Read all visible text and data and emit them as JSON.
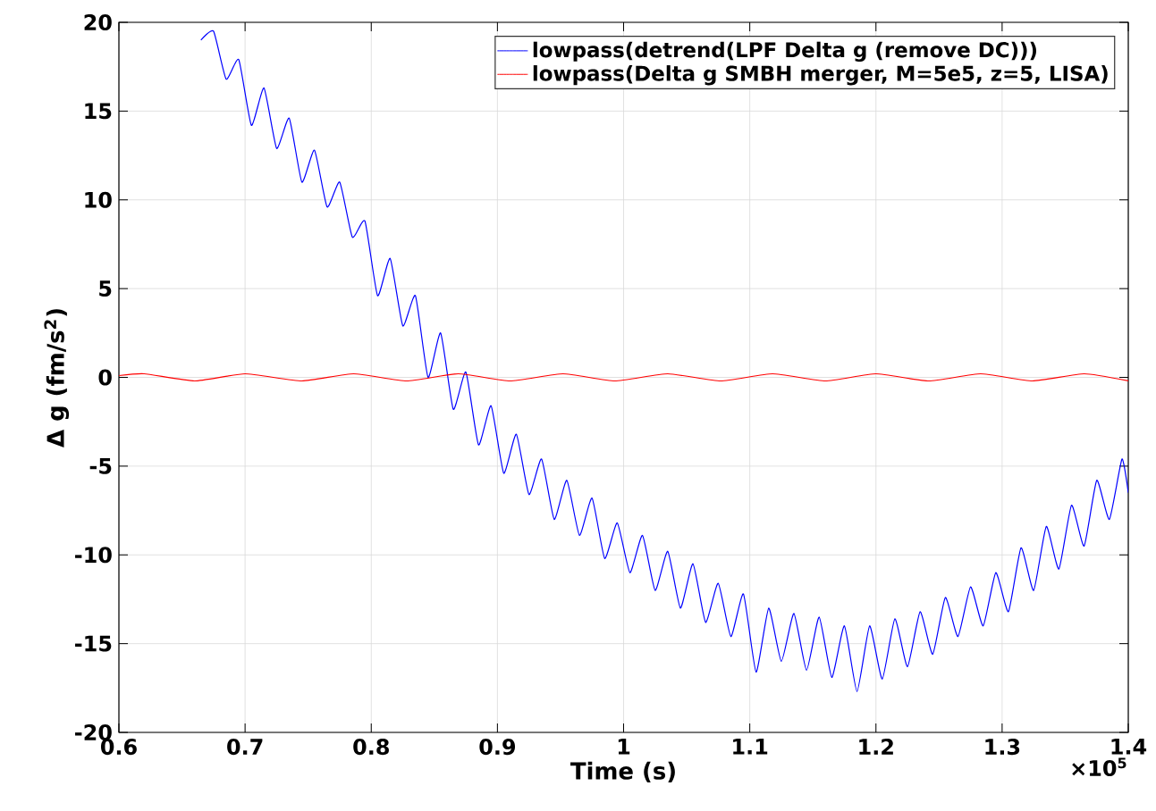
{
  "chart_data": {
    "type": "line",
    "xlabel": "Time (s)",
    "ylabel": "Δ g (fm/s$^{2}$)",
    "annotations": [
      "×10$^{5}$"
    ],
    "xlim": [
      0.6,
      1.4
    ],
    "ylim": [
      -20,
      20
    ],
    "xticks": [
      0.6,
      0.7,
      0.8,
      0.9,
      1,
      1.1,
      1.2,
      1.3,
      1.4
    ],
    "yticks": [
      -20,
      -15,
      -10,
      -5,
      0,
      5,
      10,
      15,
      20
    ],
    "grid": true,
    "legend": "top right",
    "marker": "none",
    "line_style": "solid",
    "series": [
      {
        "name": "lowpass(detrend(LPF Delta g (remove DC)))",
        "color": "#0000ff",
        "x": [
          0.665,
          0.675,
          0.685,
          0.695,
          0.705,
          0.715,
          0.725,
          0.735,
          0.745,
          0.755,
          0.765,
          0.775,
          0.785,
          0.795,
          0.805,
          0.815,
          0.825,
          0.835,
          0.845,
          0.855,
          0.865,
          0.875,
          0.885,
          0.895,
          0.905,
          0.915,
          0.925,
          0.935,
          0.945,
          0.955,
          0.965,
          0.975,
          0.985,
          0.995,
          1.005,
          1.015,
          1.025,
          1.035,
          1.045,
          1.055,
          1.065,
          1.075,
          1.085,
          1.095,
          1.105,
          1.115,
          1.125,
          1.135,
          1.145,
          1.155,
          1.165,
          1.175,
          1.185,
          1.195,
          1.205,
          1.215,
          1.225,
          1.235,
          1.245,
          1.255,
          1.265,
          1.275,
          1.285,
          1.295,
          1.305,
          1.315,
          1.325,
          1.335,
          1.345,
          1.355,
          1.365,
          1.375,
          1.385,
          1.395,
          1.4
        ],
        "values": [
          19.0,
          19.5,
          16.8,
          17.9,
          14.2,
          16.3,
          12.9,
          14.6,
          11.0,
          12.8,
          9.6,
          11.0,
          7.9,
          8.8,
          4.6,
          6.7,
          2.9,
          4.6,
          0.0,
          2.5,
          -1.8,
          0.3,
          -3.8,
          -1.6,
          -5.4,
          -3.2,
          -6.6,
          -4.6,
          -8.0,
          -5.8,
          -8.9,
          -6.8,
          -10.2,
          -8.2,
          -11.0,
          -8.9,
          -12.0,
          -9.8,
          -13.0,
          -10.5,
          -13.8,
          -11.6,
          -14.6,
          -12.2,
          -16.6,
          -13.0,
          -16.0,
          -13.3,
          -16.5,
          -13.5,
          -16.9,
          -14.0,
          -17.7,
          -14.0,
          -17.0,
          -13.6,
          -16.3,
          -13.2,
          -15.6,
          -12.4,
          -14.6,
          -11.8,
          -14.0,
          -11.0,
          -13.2,
          -9.6,
          -12.0,
          -8.4,
          -10.8,
          -7.2,
          -9.5,
          -5.8,
          -8.0,
          -4.6,
          -6.5
        ]
      },
      {
        "name": "lowpass(Delta g SMBH merger, M=5e5, z=5, LISA)",
        "color": "#ff0000",
        "x": [
          0.6,
          0.62,
          0.66,
          0.7,
          0.745,
          0.786,
          0.828,
          0.869,
          0.91,
          0.952,
          0.993,
          1.035,
          1.077,
          1.118,
          1.16,
          1.2,
          1.242,
          1.283,
          1.324,
          1.365,
          1.4
        ],
        "values": [
          0.1,
          0.2,
          -0.2,
          0.2,
          -0.2,
          0.2,
          -0.2,
          0.2,
          -0.2,
          0.2,
          -0.2,
          0.2,
          -0.2,
          0.2,
          -0.2,
          0.2,
          -0.2,
          0.2,
          -0.2,
          0.2,
          -0.2
        ]
      }
    ]
  }
}
